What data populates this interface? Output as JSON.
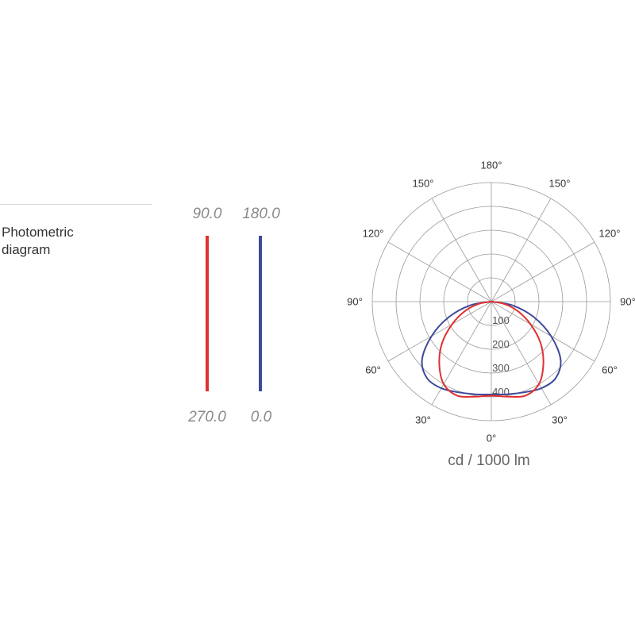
{
  "section": {
    "title": "Photometric\ndiagram"
  },
  "planes": [
    {
      "top_label": "90.0",
      "bottom_label": "270.0",
      "color": "#e03131"
    },
    {
      "top_label": "180.0",
      "bottom_label": "0.0",
      "color": "#3d4a9a"
    }
  ],
  "colors": {
    "grid": "#9a9a9a",
    "text": "#333333"
  },
  "chart_data": {
    "type": "polar",
    "unit": "cd / 1000 lm",
    "angle_labels": [
      {
        "angle": 180,
        "text": "180°"
      },
      {
        "angle": 150,
        "text": "150°"
      },
      {
        "angle": -150,
        "text": "150°"
      },
      {
        "angle": 120,
        "text": "120°"
      },
      {
        "angle": -120,
        "text": "120°"
      },
      {
        "angle": 90,
        "text": "90°"
      },
      {
        "angle": -90,
        "text": "90°"
      },
      {
        "angle": 60,
        "text": "60°"
      },
      {
        "angle": -60,
        "text": "60°"
      },
      {
        "angle": 30,
        "text": "30°"
      },
      {
        "angle": -30,
        "text": "30°"
      },
      {
        "angle": 0,
        "text": "0°"
      }
    ],
    "radial_ticks": [
      100,
      200,
      300,
      400
    ],
    "r_max": 500,
    "series": [
      {
        "color": "#3d4a9a",
        "angles": [
          0,
          10,
          20,
          30,
          40,
          50,
          60,
          70,
          80,
          90
        ],
        "values": [
          390,
          395,
          405,
          420,
          420,
          380,
          290,
          190,
          90,
          0
        ]
      },
      {
        "color": "#e03131",
        "angles": [
          0,
          10,
          20,
          30,
          40,
          50,
          60,
          70,
          80,
          90
        ],
        "values": [
          395,
          405,
          420,
          400,
          340,
          270,
          190,
          120,
          55,
          0
        ]
      }
    ]
  }
}
